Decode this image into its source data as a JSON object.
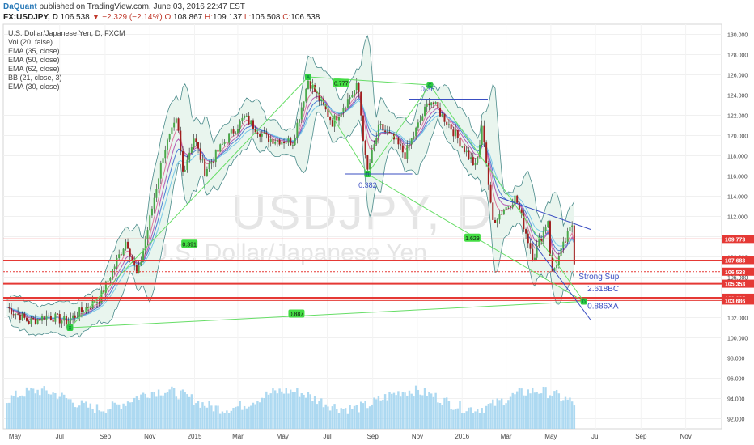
{
  "header": {
    "brand": "DaQuant",
    "published": "published on TradingView.com, June 03, 2016 22:47 EST",
    "symbol": "FX:USDJPY, D",
    "last": "106.538",
    "change_arrow": "▼",
    "change": "−2.329 (−2.14%)",
    "open": "108.867",
    "high": "109.137",
    "low": "106.508",
    "close": "106.538"
  },
  "legend": [
    "U.S. Dollar/Japanese Yen, D, FXCM",
    "Vol (20, false)",
    "EMA (35, close)",
    "EMA (50, close)",
    "EMA (62, close)",
    "BB (21, close, 3)",
    "EMA (30, close)"
  ],
  "watermark": {
    "symbol": "USDJPY, D",
    "name": "U.S. Dollar/Japanese Yen"
  },
  "chart_data": {
    "type": "line",
    "title": "USDJPY, D",
    "ylim": [
      91,
      131
    ],
    "yticks": [
      92,
      94,
      96,
      98,
      100,
      102,
      104,
      106,
      108,
      110,
      112,
      114,
      116,
      118,
      120,
      122,
      124,
      126,
      128,
      130
    ],
    "xticks": [
      {
        "label": "May",
        "date": "2014-05-01"
      },
      {
        "label": "Jul",
        "date": "2014-07-01"
      },
      {
        "label": "Sep",
        "date": "2014-09-01"
      },
      {
        "label": "Nov",
        "date": "2014-11-01"
      },
      {
        "label": "2015",
        "date": "2015-01-01"
      },
      {
        "label": "Mar",
        "date": "2015-03-01"
      },
      {
        "label": "May",
        "date": "2015-05-01"
      },
      {
        "label": "Jul",
        "date": "2015-07-01"
      },
      {
        "label": "Sep",
        "date": "2015-09-01"
      },
      {
        "label": "Nov",
        "date": "2015-11-01"
      },
      {
        "label": "2016",
        "date": "2016-01-01"
      },
      {
        "label": "Mar",
        "date": "2016-03-01"
      },
      {
        "label": "May",
        "date": "2016-05-01"
      },
      {
        "label": "Jul",
        "date": "2016-07-01"
      },
      {
        "label": "Sep",
        "date": "2016-09-01"
      },
      {
        "label": "Nov",
        "date": "2016-11-01"
      }
    ],
    "price_path": [
      [
        "2014-04-20",
        103.0
      ],
      [
        "2014-05-20",
        101.6
      ],
      [
        "2014-06-15",
        102.2
      ],
      [
        "2014-07-10",
        101.6
      ],
      [
        "2014-08-01",
        102.7
      ],
      [
        "2014-08-25",
        103.9
      ],
      [
        "2014-09-10",
        106.5
      ],
      [
        "2014-09-30",
        109.7
      ],
      [
        "2014-10-15",
        106.0
      ],
      [
        "2014-10-31",
        111.4
      ],
      [
        "2014-11-20",
        118.5
      ],
      [
        "2014-12-08",
        121.5
      ],
      [
        "2014-12-16",
        116.4
      ],
      [
        "2014-12-31",
        119.8
      ],
      [
        "2015-01-15",
        116.5
      ],
      [
        "2015-02-10",
        119.3
      ],
      [
        "2015-03-10",
        121.8
      ],
      [
        "2015-04-10",
        119.7
      ],
      [
        "2015-05-15",
        119.4
      ],
      [
        "2015-06-05",
        125.5
      ],
      [
        "2015-07-08",
        121.3
      ],
      [
        "2015-08-12",
        125.0
      ],
      [
        "2015-08-24",
        116.2
      ],
      [
        "2015-09-10",
        120.9
      ],
      [
        "2015-10-01",
        119.5
      ],
      [
        "2015-10-15",
        118.1
      ],
      [
        "2015-11-18",
        123.6
      ],
      [
        "2015-12-15",
        121.0
      ],
      [
        "2016-01-20",
        116.8
      ],
      [
        "2016-01-29",
        121.1
      ],
      [
        "2016-02-11",
        111.5
      ],
      [
        "2016-03-14",
        113.9
      ],
      [
        "2016-04-07",
        107.9
      ],
      [
        "2016-04-27",
        111.7
      ],
      [
        "2016-05-02",
        106.2
      ],
      [
        "2016-05-30",
        111.2
      ],
      [
        "2016-06-03",
        106.5
      ]
    ],
    "pattern": {
      "x_point": [
        "2014-07-15",
        101.0
      ],
      "a_point": [
        "2015-06-05",
        125.8
      ],
      "b_point": [
        "2015-08-25",
        116.2
      ],
      "c_point": [
        "2015-11-18",
        125.0
      ],
      "d_point": [
        "2016-06-15",
        103.6
      ],
      "x_label": "X",
      "a_label": "A",
      "b_label": "B",
      "c_label": "C",
      "d_label": "D"
    },
    "ratios": [
      {
        "label": "0.777",
        "date": "2015-07-20",
        "price": 125.2
      },
      {
        "label": "0.382",
        "date": "2015-08-25",
        "price": 115.1
      },
      {
        "label": "0.36",
        "date": "2015-11-15",
        "price": 124.6
      },
      {
        "label": "0.391",
        "date": "2014-12-25",
        "price": 109.3
      },
      {
        "label": "0.887",
        "date": "2015-05-20",
        "price": 102.4
      },
      {
        "label": "1.629",
        "date": "2016-01-15",
        "price": 109.9
      }
    ],
    "annotations": {
      "strong_sup": "Strong Sup",
      "bc": "2.618BC",
      "xa": "0.886XA"
    },
    "levels": [
      {
        "price": 109.773,
        "label": "109.773",
        "color": "#e53935"
      },
      {
        "price": 107.683,
        "label": "107.683",
        "color": "#e53935"
      },
      {
        "price": 106.538,
        "label": "106.538",
        "color": "#e53935"
      },
      {
        "price": 105.353,
        "label": "105.353",
        "color": "#e53935"
      },
      {
        "price": 103.965,
        "label": "103.965",
        "color": "#e53935"
      },
      {
        "price": 103.686,
        "label": "103.686",
        "color": "#e53935"
      }
    ],
    "colors": {
      "up": "#4aa84a",
      "down": "#a01e1e",
      "band_fill": "#e9f5ee",
      "band_line": "#4a8a8a",
      "pattern": "#66dd66",
      "level": "#e53935",
      "volume": "#9fd2ef",
      "ema_blue": "#4d7fd4",
      "ema_purple": "#b45ab4",
      "ema_pink": "#e07aa0",
      "ema_cyan": "#79c8e6"
    }
  }
}
